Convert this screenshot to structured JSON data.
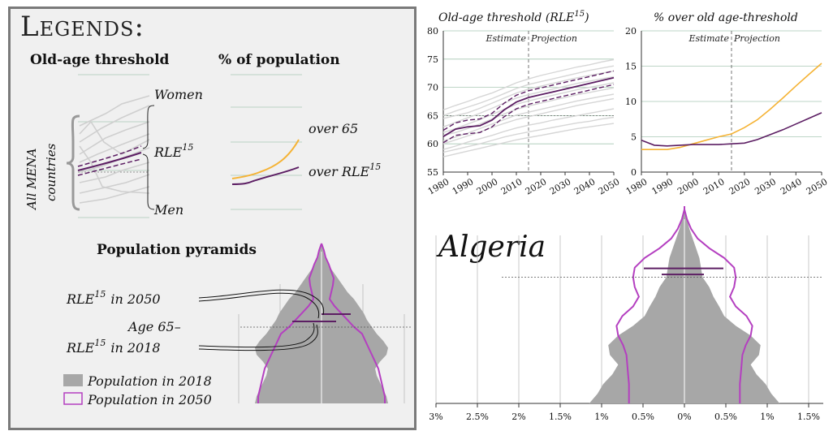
{
  "legend": {
    "title": "Legends:",
    "old_age_threshold": "Old-age threshold",
    "pct_population": "% of population",
    "all_mena": "All MENA",
    "countries": "countries",
    "women": "Women",
    "men": "Men",
    "rle": "RLE",
    "rle_sup": "15",
    "over_65": "over 65",
    "over_rle": "over RLE",
    "population_pyramids": "Population pyramids",
    "rle_2050": "in 2050",
    "age65": "Age 65–",
    "rle_2018": "in 2018",
    "pop2018": "Population in 2018",
    "pop2050": "Population in 2050"
  },
  "colors": {
    "purple": "#5c1e63",
    "orange": "#f5b335",
    "gray_lines": "#d6d6d6",
    "pyramid_fill": "#a7a7a7",
    "pyramid_2050": "#b43fc0",
    "grid_green": "#a8c8b4"
  },
  "chart_data": [
    {
      "type": "line",
      "title": "Old-age threshold (RLE",
      "title_sup": "15",
      "title_end": ")",
      "xlim": [
        1980,
        2050
      ],
      "ylim": [
        55,
        80
      ],
      "x_ticks": [
        "1980",
        "1990",
        "2000",
        "2010",
        "2020",
        "2030",
        "2040",
        "2050"
      ],
      "y_ticks": [
        "55",
        "60",
        "65",
        "70",
        "75",
        "80"
      ],
      "annotations": {
        "divider_year": 2015,
        "left": "Estimate",
        "right": "Projection",
        "reference_y": 65
      },
      "x": [
        1980,
        1985,
        1990,
        1995,
        2000,
        2005,
        2010,
        2015,
        2020,
        2025,
        2030,
        2035,
        2040,
        2045,
        2050
      ],
      "series": [
        {
          "role": "background",
          "values": [
            66,
            66.8,
            67.5,
            68.3,
            69,
            69.9,
            70.8,
            71.5,
            72.1,
            72.6,
            73.1,
            73.6,
            74,
            74.5,
            74.9
          ]
        },
        {
          "role": "background",
          "values": [
            65,
            65.8,
            66.5,
            67.2,
            68,
            68.9,
            69.8,
            70.5,
            71,
            71.5,
            72,
            72.5,
            73,
            73.4,
            73.8
          ]
        },
        {
          "role": "background",
          "values": [
            64.5,
            65,
            65.5,
            66.3,
            67.2,
            68.1,
            69,
            69.7,
            70.2,
            70.7,
            71.2,
            71.7,
            72.1,
            72.5,
            72.9
          ]
        },
        {
          "role": "background",
          "values": [
            63,
            63.8,
            64.6,
            65.4,
            66.3,
            67.2,
            68.1,
            68.7,
            69.2,
            69.7,
            70.2,
            70.7,
            71.1,
            71.5,
            71.9
          ]
        },
        {
          "role": "background",
          "values": [
            62,
            62.7,
            63.5,
            64.3,
            65.2,
            66.1,
            67,
            67.6,
            68.1,
            68.6,
            69.1,
            69.6,
            70,
            70.4,
            70.8
          ]
        },
        {
          "role": "background",
          "values": [
            61.5,
            62,
            62.7,
            63.5,
            64.4,
            65.3,
            66.1,
            66.7,
            67.2,
            67.7,
            68.2,
            68.7,
            69.1,
            69.5,
            69.9
          ]
        },
        {
          "role": "background",
          "values": [
            60.5,
            61.2,
            61.9,
            62.7,
            63.5,
            64.3,
            65.1,
            65.6,
            66.1,
            66.6,
            67.1,
            67.6,
            68,
            68.4,
            68.8
          ]
        },
        {
          "role": "background",
          "values": [
            60,
            60.7,
            61.4,
            62.1,
            62.9,
            63.6,
            64.3,
            64.8,
            65.3,
            65.8,
            66.3,
            66.8,
            67.2,
            67.6,
            68
          ]
        },
        {
          "role": "background",
          "values": [
            59,
            59.6,
            60.3,
            60.9,
            61.5,
            62.2,
            62.8,
            63.3,
            63.7,
            64.2,
            64.6,
            65,
            65.4,
            65.8,
            66.2
          ]
        },
        {
          "role": "background",
          "values": [
            58.5,
            59,
            59.5,
            60,
            60.6,
            61.2,
            61.7,
            62.1,
            62.5,
            62.9,
            63.3,
            63.7,
            64,
            64.4,
            64.7
          ]
        },
        {
          "role": "background",
          "values": [
            57.7,
            58.2,
            58.7,
            59.2,
            59.7,
            60.2,
            60.7,
            61.1,
            61.5,
            61.9,
            62.3,
            62.7,
            63,
            63.3,
            63.6
          ]
        },
        {
          "role": "Women",
          "values": [
            62.4,
            63.7,
            64.2,
            64.4,
            65.4,
            67.2,
            68.6,
            69.4,
            69.9,
            70.4,
            70.9,
            71.4,
            71.9,
            72.4,
            72.9
          ]
        },
        {
          "role": "RLE15",
          "values": [
            61.3,
            62.6,
            63,
            63.2,
            64.2,
            66,
            67.4,
            68.2,
            68.7,
            69.2,
            69.7,
            70.2,
            70.7,
            71.2,
            71.7
          ]
        },
        {
          "role": "Men",
          "values": [
            60.2,
            61.5,
            61.8,
            62,
            63,
            64.8,
            66.2,
            67,
            67.5,
            68,
            68.5,
            69,
            69.5,
            70,
            70.5
          ]
        }
      ]
    },
    {
      "type": "line",
      "title": "% over old age-threshold",
      "xlim": [
        1980,
        2050
      ],
      "ylim": [
        0,
        20
      ],
      "x_ticks": [
        "1980",
        "1990",
        "2000",
        "2010",
        "2020",
        "2030",
        "2040",
        "2050"
      ],
      "y_ticks": [
        "0",
        "5",
        "10",
        "15",
        "20"
      ],
      "annotations": {
        "divider_year": 2015,
        "left": "Estimate",
        "right": "Projection"
      },
      "x": [
        1980,
        1985,
        1990,
        1995,
        2000,
        2005,
        2010,
        2015,
        2020,
        2025,
        2030,
        2035,
        2040,
        2045,
        2050
      ],
      "series": [
        {
          "name": "over 65",
          "values": [
            3.2,
            3.2,
            3.2,
            3.5,
            4,
            4.5,
            5,
            5.4,
            6.3,
            7.4,
            8.9,
            10.5,
            12.2,
            13.8,
            15.4
          ]
        },
        {
          "name": "over RLE15",
          "values": [
            4.5,
            3.8,
            3.7,
            3.8,
            3.9,
            3.9,
            3.9,
            4,
            4.1,
            4.6,
            5.3,
            6,
            6.8,
            7.6,
            8.4
          ]
        }
      ]
    },
    {
      "type": "area",
      "title": "Algeria",
      "x_ticks": [
        "3%",
        "2.5%",
        "2%",
        "1.5%",
        "1%",
        "0.5%",
        "0%",
        "0.5%",
        "1%",
        "1.5%"
      ],
      "xlim": [
        -3,
        1.5
      ],
      "age_max": 100,
      "ages": [
        0,
        5,
        10,
        15,
        20,
        25,
        30,
        35,
        40,
        45,
        50,
        55,
        60,
        65,
        70,
        75,
        80,
        85,
        90,
        95,
        100
      ],
      "pop_2018": [
        1.15,
        1.05,
        0.98,
        0.87,
        0.8,
        0.9,
        0.92,
        0.8,
        0.62,
        0.48,
        0.42,
        0.35,
        0.3,
        0.22,
        0.2,
        0.18,
        0.14,
        0.1,
        0.06,
        0.03,
        0.0
      ],
      "pop_2050": [
        0.67,
        0.67,
        0.67,
        0.68,
        0.69,
        0.7,
        0.74,
        0.8,
        0.82,
        0.75,
        0.62,
        0.55,
        0.6,
        0.62,
        0.6,
        0.48,
        0.3,
        0.16,
        0.08,
        0.03,
        0.0
      ],
      "reference_age": 65,
      "rle_2018_age": 66.5,
      "rle_2050_age": 69.6
    }
  ]
}
